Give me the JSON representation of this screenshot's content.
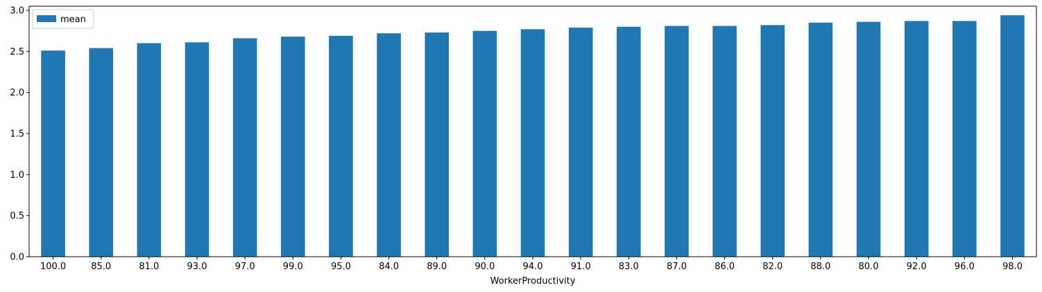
{
  "chart_data": {
    "type": "bar",
    "xlabel": "WorkerProductivity",
    "ylabel": "",
    "title": "",
    "categories": [
      "100.0",
      "85.0",
      "81.0",
      "93.0",
      "97.0",
      "99.0",
      "95.0",
      "84.0",
      "89.0",
      "90.0",
      "94.0",
      "91.0",
      "83.0",
      "87.0",
      "86.0",
      "82.0",
      "88.0",
      "80.0",
      "92.0",
      "96.0",
      "98.0"
    ],
    "series": [
      {
        "name": "mean",
        "color": "#1f77b4",
        "values": [
          2.51,
          2.54,
          2.6,
          2.61,
          2.66,
          2.68,
          2.69,
          2.72,
          2.73,
          2.75,
          2.77,
          2.79,
          2.8,
          2.81,
          2.81,
          2.82,
          2.85,
          2.86,
          2.87,
          2.87,
          2.94
        ]
      }
    ],
    "ylim": [
      0,
      3.05
    ],
    "yticks": [
      "0.0",
      "0.5",
      "1.0",
      "1.5",
      "2.0",
      "2.5",
      "3.0"
    ],
    "grid": false,
    "legend_position": "top-left"
  }
}
